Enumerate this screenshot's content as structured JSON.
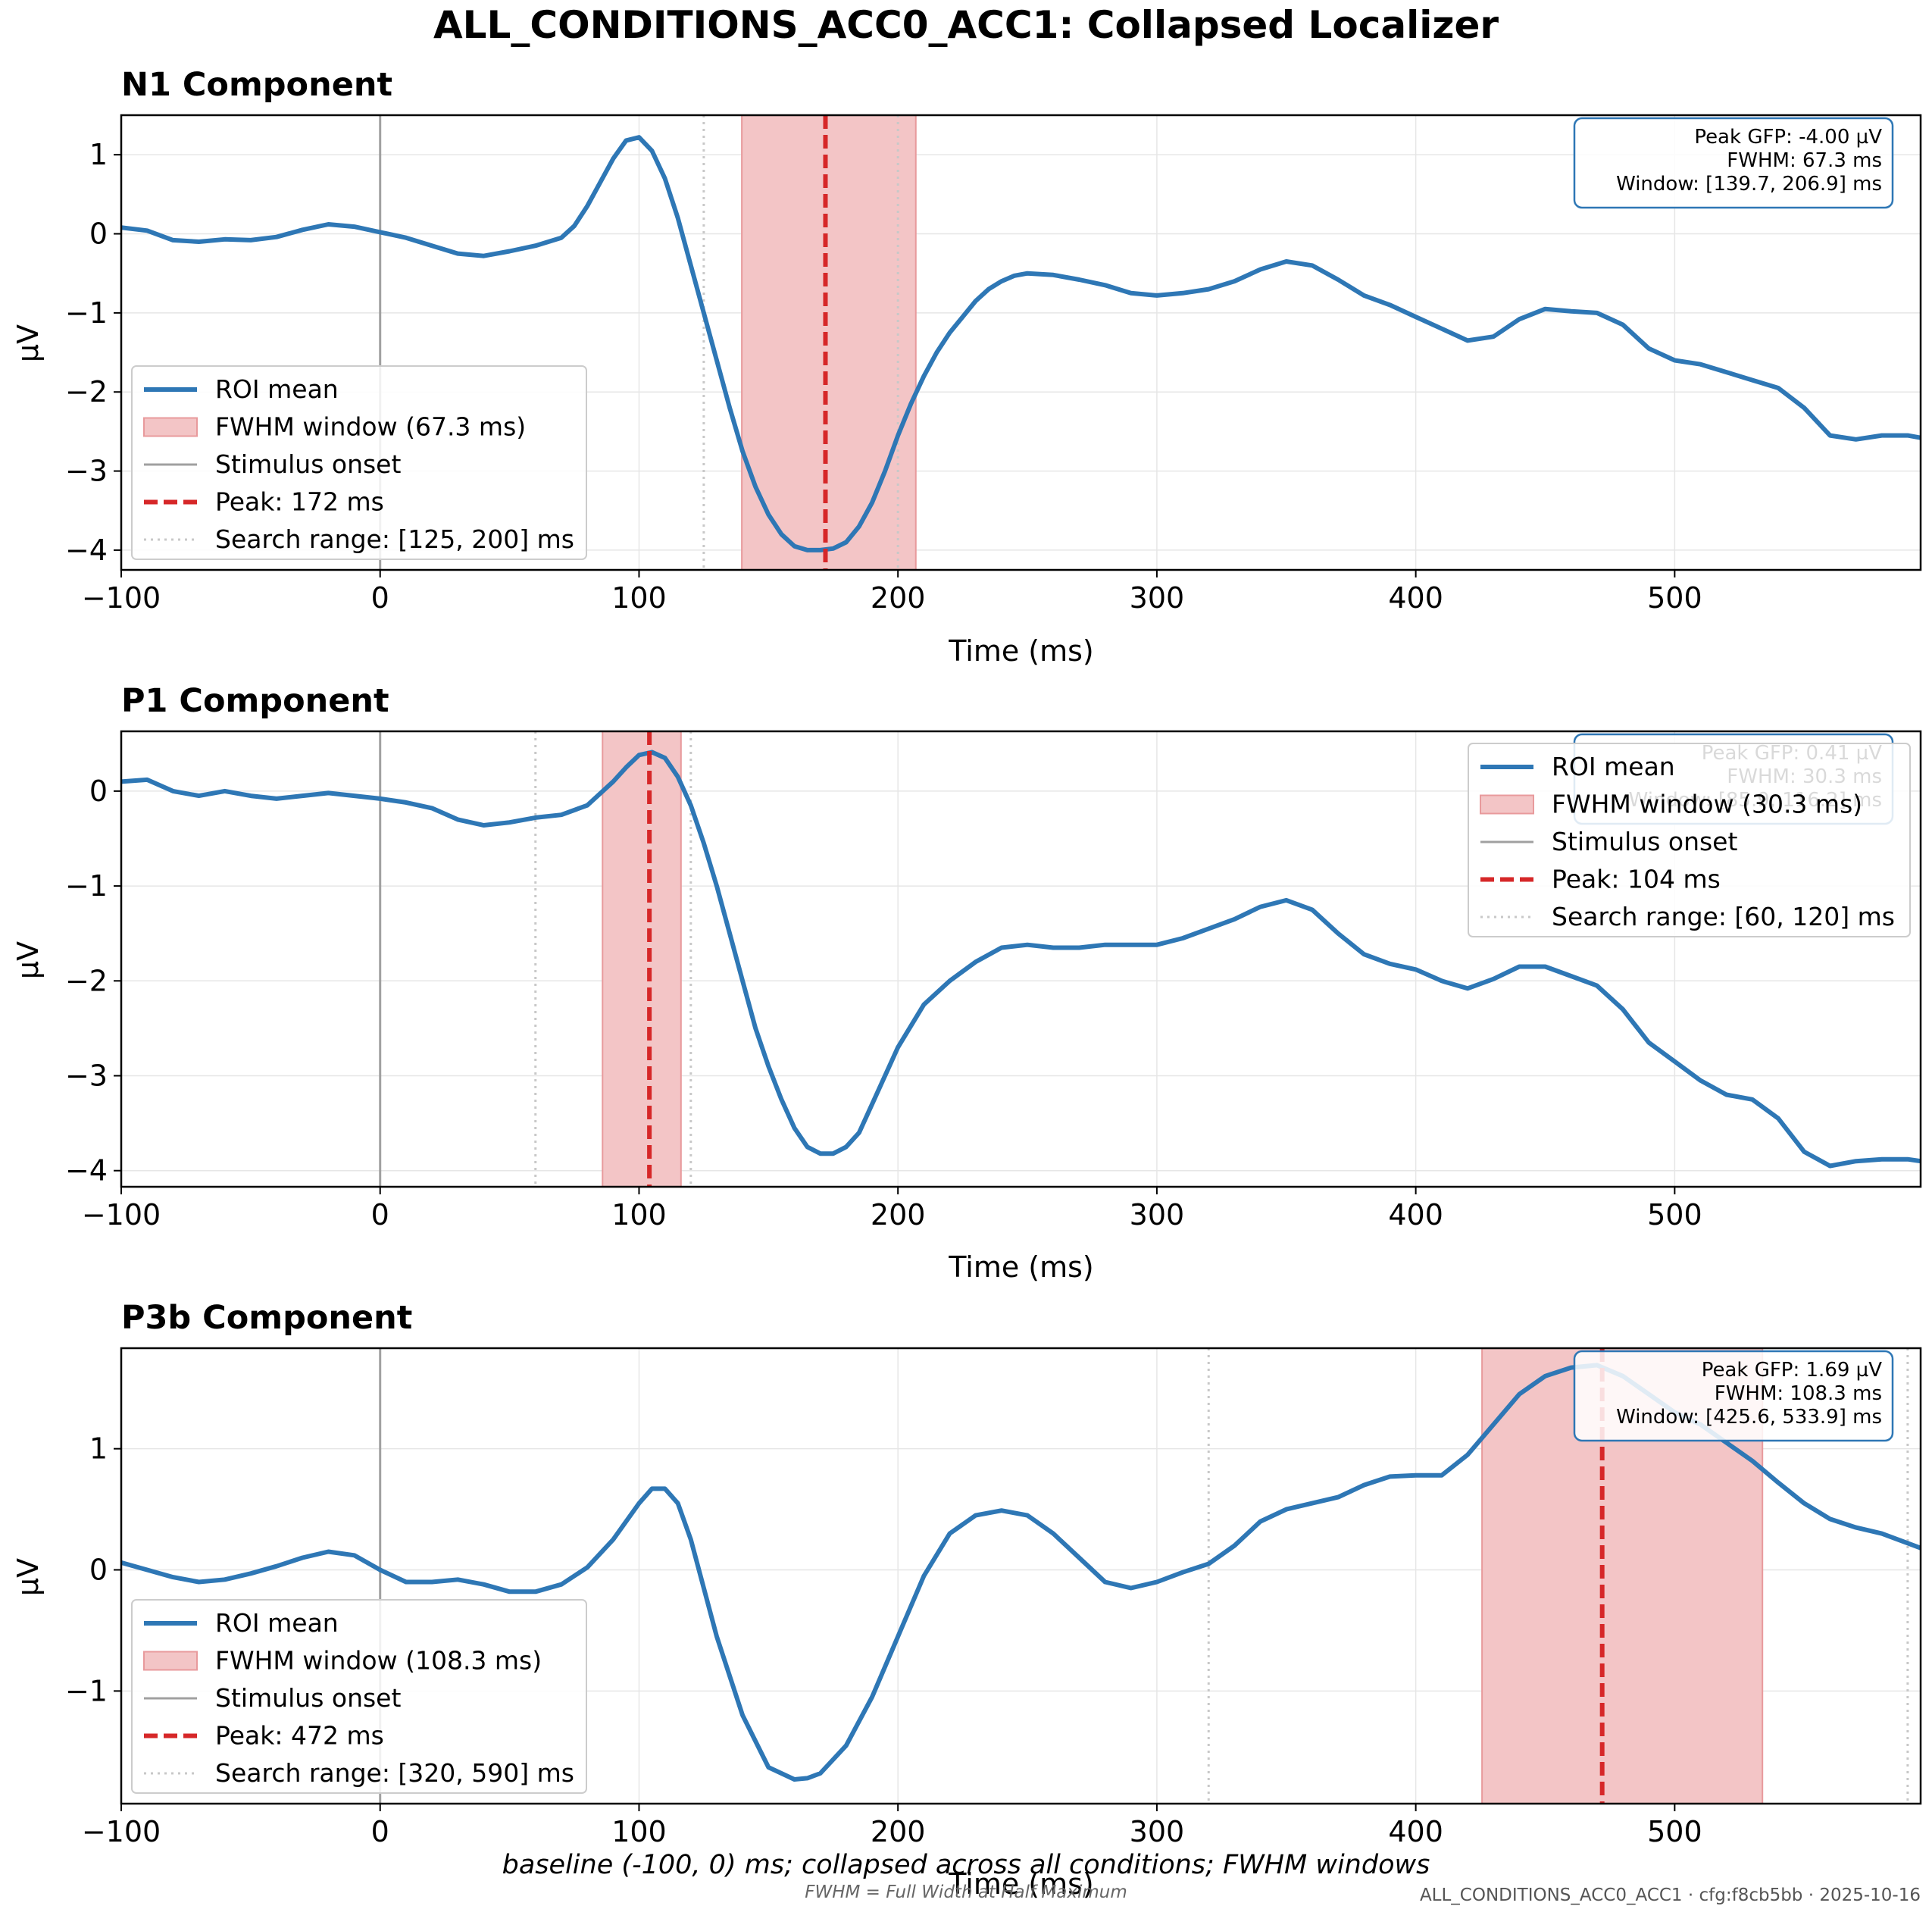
{
  "figure": {
    "title": "ALL_CONDITIONS_ACC0_ACC1: Collapsed Localizer",
    "caption": "baseline (-100, 0) ms; collapsed across all conditions; FWHM windows",
    "footnote": "FWHM = Full Width at Half Maximum",
    "stamp": "ALL_CONDITIONS_ACC0_ACC1 · cfg:f8cb5bb · 2025-10-16"
  },
  "colors": {
    "line": "#2e77b5",
    "peak": "#d62728",
    "fwhm_fill": "#f3c5c6",
    "fwhm_edge": "#e89a9c",
    "onset": "#a0a0a0",
    "search": "#c8c8c8",
    "grid": "#e6e6e6",
    "box_edge": "#2e77b5"
  },
  "chart_data": [
    {
      "type": "line",
      "title": "N1 Component",
      "xlabel": "Time (ms)",
      "ylabel": "µV",
      "xlim": [
        -100,
        595
      ],
      "ylim": [
        -4.25,
        1.5
      ],
      "xticks": [
        -100,
        0,
        100,
        200,
        300,
        400,
        500
      ],
      "yticks": [
        -4,
        -3,
        -2,
        -1,
        0,
        1
      ],
      "grid": true,
      "legend_position": "lower-left",
      "info_position": "top-right",
      "info": [
        "Peak GFP: -4.00 µV",
        "FWHM: 67.3 ms",
        "Window: [139.7, 206.9] ms"
      ],
      "legend": [
        "ROI mean",
        "FWHM window (67.3 ms)",
        "Stimulus onset",
        "Peak: 172 ms",
        "Search range: [125, 200] ms"
      ],
      "peak_ms": 172,
      "fwhm_window": [
        139.7,
        206.9
      ],
      "search_range": [
        125,
        200
      ],
      "onset_ms": 0,
      "series": [
        {
          "x": [
            -100,
            -90,
            -80,
            -70,
            -60,
            -50,
            -40,
            -30,
            -20,
            -10,
            0,
            10,
            20,
            30,
            40,
            50,
            60,
            70,
            75,
            80,
            85,
            90,
            95,
            100,
            105,
            110,
            115,
            120,
            125,
            130,
            135,
            140,
            145,
            150,
            155,
            160,
            165,
            170,
            175,
            180,
            185,
            190,
            195,
            200,
            205,
            210,
            215,
            220,
            225,
            230,
            235,
            240,
            245,
            250,
            260,
            270,
            280,
            290,
            300,
            310,
            320,
            330,
            340,
            350,
            360,
            370,
            380,
            390,
            400,
            410,
            420,
            430,
            440,
            450,
            460,
            470,
            480,
            490,
            500,
            510,
            520,
            530,
            540,
            550,
            560,
            570,
            580,
            590,
            595
          ],
          "values": [
            0.08,
            0.04,
            -0.08,
            -0.1,
            -0.07,
            -0.08,
            -0.04,
            0.05,
            0.12,
            0.09,
            0.02,
            -0.05,
            -0.15,
            -0.25,
            -0.28,
            -0.22,
            -0.15,
            -0.05,
            0.1,
            0.35,
            0.65,
            0.95,
            1.18,
            1.22,
            1.05,
            0.7,
            0.2,
            -0.4,
            -1.0,
            -1.6,
            -2.2,
            -2.75,
            -3.2,
            -3.55,
            -3.8,
            -3.95,
            -4.0,
            -4.0,
            -3.98,
            -3.9,
            -3.7,
            -3.4,
            -3.0,
            -2.55,
            -2.15,
            -1.8,
            -1.5,
            -1.25,
            -1.05,
            -0.85,
            -0.7,
            -0.6,
            -0.53,
            -0.5,
            -0.52,
            -0.58,
            -0.65,
            -0.75,
            -0.78,
            -0.75,
            -0.7,
            -0.6,
            -0.45,
            -0.35,
            -0.4,
            -0.58,
            -0.78,
            -0.9,
            -1.05,
            -1.2,
            -1.35,
            -1.3,
            -1.08,
            -0.95,
            -0.98,
            -1.0,
            -1.15,
            -1.45,
            -1.6,
            -1.65,
            -1.75,
            -1.85,
            -1.95,
            -2.2,
            -2.55,
            -2.6,
            -2.55,
            -2.55,
            -2.58
          ]
        }
      ]
    },
    {
      "type": "line",
      "title": "P1 Component",
      "xlabel": "Time (ms)",
      "ylabel": "µV",
      "xlim": [
        -100,
        595
      ],
      "ylim": [
        -4.17,
        0.63
      ],
      "xticks": [
        -100,
        0,
        100,
        200,
        300,
        400,
        500
      ],
      "yticks": [
        -4,
        -3,
        -2,
        -1,
        0
      ],
      "grid": true,
      "legend_position": "top-right",
      "info_position": "top-right",
      "info": [
        "Peak GFP: 0.41 µV",
        "FWHM: 30.3 ms",
        "Window: [85.9, 116.2] ms"
      ],
      "legend": [
        "ROI mean",
        "FWHM window (30.3 ms)",
        "Stimulus onset",
        "Peak: 104 ms",
        "Search range: [60, 120] ms"
      ],
      "peak_ms": 104,
      "fwhm_window": [
        85.9,
        116.2
      ],
      "search_range": [
        60,
        120
      ],
      "onset_ms": 0,
      "series": [
        {
          "x": [
            -100,
            -90,
            -80,
            -70,
            -60,
            -50,
            -40,
            -30,
            -20,
            -10,
            0,
            10,
            20,
            30,
            40,
            50,
            60,
            70,
            80,
            90,
            95,
            100,
            105,
            110,
            115,
            120,
            125,
            130,
            135,
            140,
            145,
            150,
            155,
            160,
            165,
            170,
            175,
            180,
            185,
            190,
            195,
            200,
            210,
            220,
            230,
            240,
            250,
            260,
            270,
            280,
            290,
            300,
            310,
            320,
            330,
            340,
            350,
            360,
            370,
            380,
            390,
            400,
            410,
            420,
            430,
            440,
            450,
            460,
            470,
            480,
            490,
            500,
            510,
            520,
            530,
            540,
            550,
            560,
            570,
            580,
            590,
            595
          ],
          "values": [
            0.1,
            0.12,
            0.0,
            -0.05,
            0.0,
            -0.05,
            -0.08,
            -0.05,
            -0.02,
            -0.05,
            -0.08,
            -0.12,
            -0.18,
            -0.3,
            -0.36,
            -0.33,
            -0.28,
            -0.25,
            -0.15,
            0.1,
            0.25,
            0.38,
            0.41,
            0.35,
            0.15,
            -0.15,
            -0.55,
            -1.0,
            -1.5,
            -2.0,
            -2.5,
            -2.9,
            -3.25,
            -3.55,
            -3.75,
            -3.82,
            -3.82,
            -3.75,
            -3.6,
            -3.3,
            -3.0,
            -2.7,
            -2.25,
            -2.0,
            -1.8,
            -1.65,
            -1.62,
            -1.65,
            -1.65,
            -1.62,
            -1.62,
            -1.62,
            -1.55,
            -1.45,
            -1.35,
            -1.22,
            -1.15,
            -1.25,
            -1.5,
            -1.72,
            -1.82,
            -1.88,
            -2.0,
            -2.08,
            -1.98,
            -1.85,
            -1.85,
            -1.95,
            -2.05,
            -2.3,
            -2.65,
            -2.85,
            -3.05,
            -3.2,
            -3.25,
            -3.45,
            -3.8,
            -3.95,
            -3.9,
            -3.88,
            -3.88,
            -3.9
          ]
        }
      ]
    },
    {
      "type": "line",
      "title": "P3b Component",
      "xlabel": "Time (ms)",
      "ylabel": "µV",
      "xlim": [
        -100,
        595
      ],
      "ylim": [
        -1.93,
        1.83
      ],
      "xticks": [
        -100,
        0,
        100,
        200,
        300,
        400,
        500
      ],
      "yticks": [
        -1,
        0,
        1
      ],
      "grid": true,
      "legend_position": "lower-left",
      "info_position": "top-right",
      "info": [
        "Peak GFP: 1.69 µV",
        "FWHM: 108.3 ms",
        "Window: [425.6, 533.9] ms"
      ],
      "legend": [
        "ROI mean",
        "FWHM window (108.3 ms)",
        "Stimulus onset",
        "Peak: 472 ms",
        "Search range: [320, 590] ms"
      ],
      "peak_ms": 472,
      "fwhm_window": [
        425.6,
        533.9
      ],
      "search_range": [
        320,
        590
      ],
      "onset_ms": 0,
      "series": [
        {
          "x": [
            -100,
            -90,
            -80,
            -70,
            -60,
            -50,
            -40,
            -30,
            -20,
            -10,
            0,
            10,
            20,
            30,
            40,
            50,
            60,
            70,
            80,
            90,
            100,
            105,
            110,
            115,
            120,
            125,
            130,
            140,
            150,
            160,
            165,
            170,
            180,
            190,
            200,
            210,
            220,
            230,
            240,
            250,
            260,
            270,
            280,
            290,
            300,
            310,
            320,
            330,
            340,
            350,
            360,
            370,
            380,
            390,
            400,
            410,
            420,
            430,
            440,
            450,
            460,
            470,
            480,
            490,
            500,
            510,
            520,
            530,
            540,
            550,
            560,
            570,
            580,
            590,
            595
          ],
          "values": [
            0.06,
            0.0,
            -0.06,
            -0.1,
            -0.08,
            -0.03,
            0.03,
            0.1,
            0.15,
            0.12,
            0.0,
            -0.1,
            -0.1,
            -0.08,
            -0.12,
            -0.18,
            -0.18,
            -0.12,
            0.02,
            0.25,
            0.55,
            0.67,
            0.67,
            0.55,
            0.25,
            -0.15,
            -0.55,
            -1.2,
            -1.63,
            -1.73,
            -1.72,
            -1.68,
            -1.45,
            -1.05,
            -0.55,
            -0.05,
            0.3,
            0.45,
            0.49,
            0.45,
            0.3,
            0.1,
            -0.1,
            -0.15,
            -0.1,
            -0.02,
            0.05,
            0.2,
            0.4,
            0.5,
            0.55,
            0.6,
            0.7,
            0.77,
            0.78,
            0.78,
            0.95,
            1.2,
            1.45,
            1.6,
            1.67,
            1.69,
            1.6,
            1.45,
            1.3,
            1.2,
            1.05,
            0.9,
            0.72,
            0.55,
            0.42,
            0.35,
            0.3,
            0.22,
            0.18
          ]
        }
      ]
    }
  ]
}
